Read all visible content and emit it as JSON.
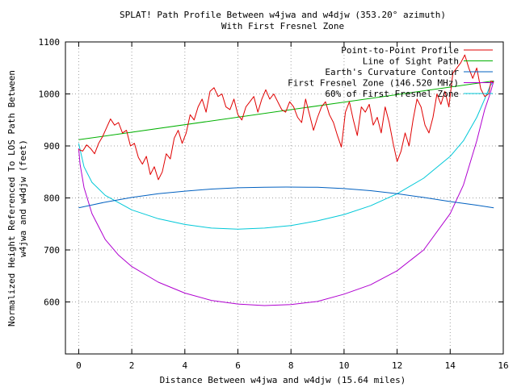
{
  "chart_data": {
    "type": "line",
    "title": "SPLAT! Path Profile Between w4jwa and w4djw (353.20° azimuth)",
    "subtitle": "With First Fresnel Zone",
    "xlabel": "Distance Between w4jwa and w4djw (15.64 miles)",
    "ylabel_line1": "Normalized Height Referenced To LOS Path Between",
    "ylabel_line2": "w4jwa and w4djw (feet)",
    "xlim": [
      -0.5,
      16
    ],
    "ylim": [
      500,
      1100
    ],
    "xticks": [
      0,
      2,
      4,
      6,
      8,
      10,
      12,
      14,
      16
    ],
    "yticks": [
      600,
      700,
      800,
      900,
      1000,
      1100
    ],
    "grid": true,
    "legend_position": "top-right",
    "path_length_miles": 15.64,
    "series": [
      {
        "name": "Point-to-Point Profile",
        "color": "#e00000",
        "x": [
          0,
          0.15,
          0.3,
          0.45,
          0.6,
          0.75,
          0.9,
          1.05,
          1.2,
          1.35,
          1.5,
          1.65,
          1.8,
          1.95,
          2.1,
          2.25,
          2.4,
          2.55,
          2.7,
          2.85,
          3.0,
          3.15,
          3.3,
          3.45,
          3.6,
          3.75,
          3.9,
          4.05,
          4.2,
          4.35,
          4.5,
          4.65,
          4.8,
          4.95,
          5.1,
          5.25,
          5.4,
          5.55,
          5.7,
          5.85,
          6.0,
          6.15,
          6.3,
          6.45,
          6.6,
          6.75,
          6.9,
          7.05,
          7.2,
          7.35,
          7.5,
          7.65,
          7.8,
          7.95,
          8.1,
          8.25,
          8.4,
          8.55,
          8.7,
          8.85,
          9.0,
          9.15,
          9.3,
          9.45,
          9.6,
          9.75,
          9.9,
          10.05,
          10.2,
          10.35,
          10.5,
          10.65,
          10.8,
          10.95,
          11.1,
          11.25,
          11.4,
          11.55,
          11.7,
          11.85,
          12.0,
          12.15,
          12.3,
          12.45,
          12.6,
          12.75,
          12.9,
          13.05,
          13.2,
          13.35,
          13.5,
          13.65,
          13.8,
          13.95,
          14.1,
          14.25,
          14.4,
          14.55,
          14.7,
          14.85,
          15.0,
          15.15,
          15.3,
          15.45,
          15.54,
          15.64
        ],
        "y": [
          893,
          890,
          902,
          895,
          885,
          905,
          918,
          935,
          952,
          940,
          945,
          925,
          930,
          900,
          905,
          878,
          865,
          880,
          845,
          860,
          835,
          850,
          885,
          875,
          915,
          930,
          905,
          925,
          960,
          950,
          975,
          990,
          965,
          1005,
          1012,
          995,
          1000,
          975,
          970,
          990,
          960,
          950,
          975,
          985,
          995,
          965,
          990,
          1008,
          990,
          1000,
          985,
          970,
          965,
          985,
          975,
          955,
          945,
          990,
          960,
          930,
          955,
          975,
          985,
          960,
          945,
          920,
          898,
          965,
          985,
          950,
          920,
          975,
          965,
          980,
          940,
          955,
          925,
          975,
          945,
          905,
          870,
          890,
          925,
          900,
          950,
          990,
          975,
          940,
          925,
          955,
          1000,
          980,
          1005,
          975,
          1040,
          1050,
          1060,
          1075,
          1050,
          1030,
          1050,
          1010,
          995,
          1000,
          1025,
          1022
        ]
      },
      {
        "name": "Line of Sight Path",
        "color": "#00b000",
        "x": [
          0,
          15.64
        ],
        "y": [
          912,
          1025
        ]
      },
      {
        "name": "Earth's Curvature Contour",
        "color": "#0060c0",
        "x": [
          0,
          1,
          2,
          3,
          4,
          5,
          6,
          7,
          7.82,
          9,
          10,
          11,
          12,
          13,
          14,
          15,
          15.64
        ],
        "y": [
          781,
          792,
          801,
          808,
          813,
          817,
          819.5,
          820.5,
          821,
          820.5,
          818,
          814,
          808,
          801,
          793,
          786,
          781
        ]
      },
      {
        "name": "First Fresnel Zone (146.520 MHz)",
        "color": "#b000d0",
        "x": [
          0,
          0.05,
          0.2,
          0.5,
          1,
          1.5,
          2,
          3,
          4,
          5,
          6,
          7,
          8,
          9,
          10,
          11,
          12,
          13,
          14,
          14.5,
          15,
          15.3,
          15.5,
          15.6,
          15.64
        ],
        "y": [
          895,
          865,
          820,
          770,
          720,
          690,
          668,
          638,
          617,
          603,
          596,
          593,
          595,
          601,
          615,
          633,
          660,
          700,
          770,
          825,
          910,
          970,
          1000,
          1018,
          1025
        ]
      },
      {
        "name": "60% of First Fresnel Zone",
        "color": "#00c8d8",
        "x": [
          0,
          0.2,
          0.5,
          1,
          2,
          3,
          4,
          5,
          6,
          7,
          8,
          9,
          10,
          11,
          12,
          13,
          14,
          14.5,
          15,
          15.3,
          15.5,
          15.64
        ],
        "y": [
          905,
          860,
          830,
          805,
          777,
          760,
          749,
          742,
          740,
          742,
          747,
          756,
          768,
          785,
          808,
          838,
          880,
          910,
          955,
          990,
          1015,
          1025
        ]
      }
    ]
  }
}
